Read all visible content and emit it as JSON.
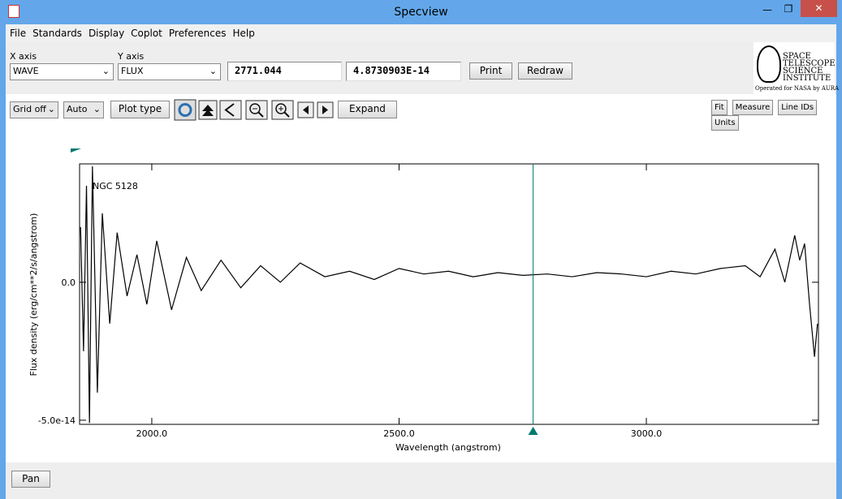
{
  "window": {
    "title": "Specview"
  },
  "menu": [
    "File",
    "Standards",
    "Display",
    "Coplot",
    "Preferences",
    "Help"
  ],
  "controls": {
    "x_axis_label": "X axis",
    "x_axis_value": "WAVE",
    "y_axis_label": "Y axis",
    "y_axis_value": "FLUX",
    "readout_x": 2771.044,
    "readout_y": "4.8730903E-14",
    "print": "Print",
    "redraw": "Redraw"
  },
  "logo": {
    "lines": [
      "SPACE",
      "TELESCOPE",
      "SCIENCE",
      "INSTITUTE"
    ],
    "caption": "Operated for NASA by AURA"
  },
  "toolbar": {
    "grid": "Grid off",
    "scale": "Auto",
    "plot_type": "Plot type",
    "expand": "Expand",
    "right": [
      "Fit",
      "Measure",
      "Line IDs",
      "Units"
    ]
  },
  "chart_data": {
    "type": "line",
    "annotation": "NGC 5128",
    "xlabel": "Wavelength (angstrom)",
    "ylabel": "Flux density (erg/cm**2/s/angstrom)",
    "x": [
      1856,
      1862,
      1868,
      1874,
      1880,
      1890,
      1900,
      1915,
      1930,
      1950,
      1970,
      1990,
      2010,
      2040,
      2070,
      2100,
      2140,
      2180,
      2220,
      2260,
      2300,
      2350,
      2400,
      2450,
      2500,
      2550,
      2600,
      2650,
      2700,
      2750,
      2800,
      2850,
      2900,
      2950,
      3000,
      3050,
      3100,
      3150,
      3200,
      3230,
      3260,
      3280,
      3300,
      3310,
      3320,
      3330,
      3340,
      3346
    ],
    "series": [
      {
        "color": "#000000",
        "values": [
          2e-14,
          -2.5e-14,
          3.5e-14,
          -5.1e-14,
          4.2e-14,
          -4e-14,
          2.5e-14,
          -1.5e-14,
          1.8e-14,
          -5e-15,
          1e-14,
          -8e-15,
          1.5e-14,
          -1e-14,
          9e-15,
          -3e-15,
          8e-15,
          -2e-15,
          6e-15,
          0.0,
          7e-15,
          2e-15,
          4e-15,
          1e-15,
          5e-15,
          3e-15,
          4e-15,
          2e-15,
          3.5e-15,
          2.5e-15,
          3e-15,
          2e-15,
          3.5e-15,
          3e-15,
          2e-15,
          4e-15,
          3e-15,
          5e-15,
          6e-15,
          2e-15,
          1.2e-14,
          0.0,
          1.7e-14,
          8e-15,
          1.4e-14,
          -8e-15,
          -2.7e-14,
          -1.5e-14
        ]
      }
    ],
    "xlim": [
      1854,
      3348
    ],
    "ylim": [
      -5.15e-14,
      4.29e-14
    ],
    "xticks": [
      {
        "value": 2000,
        "label": "2000.0"
      },
      {
        "value": 2500,
        "label": "2500.0"
      },
      {
        "value": 3000,
        "label": "3000.0"
      }
    ],
    "yticks": [
      {
        "value": 0,
        "label": "0.0"
      },
      {
        "value": -5e-14,
        "label": "-5.0e-14"
      }
    ],
    "cursor_color": "#007a6e"
  },
  "footer": {
    "pan": "Pan"
  }
}
